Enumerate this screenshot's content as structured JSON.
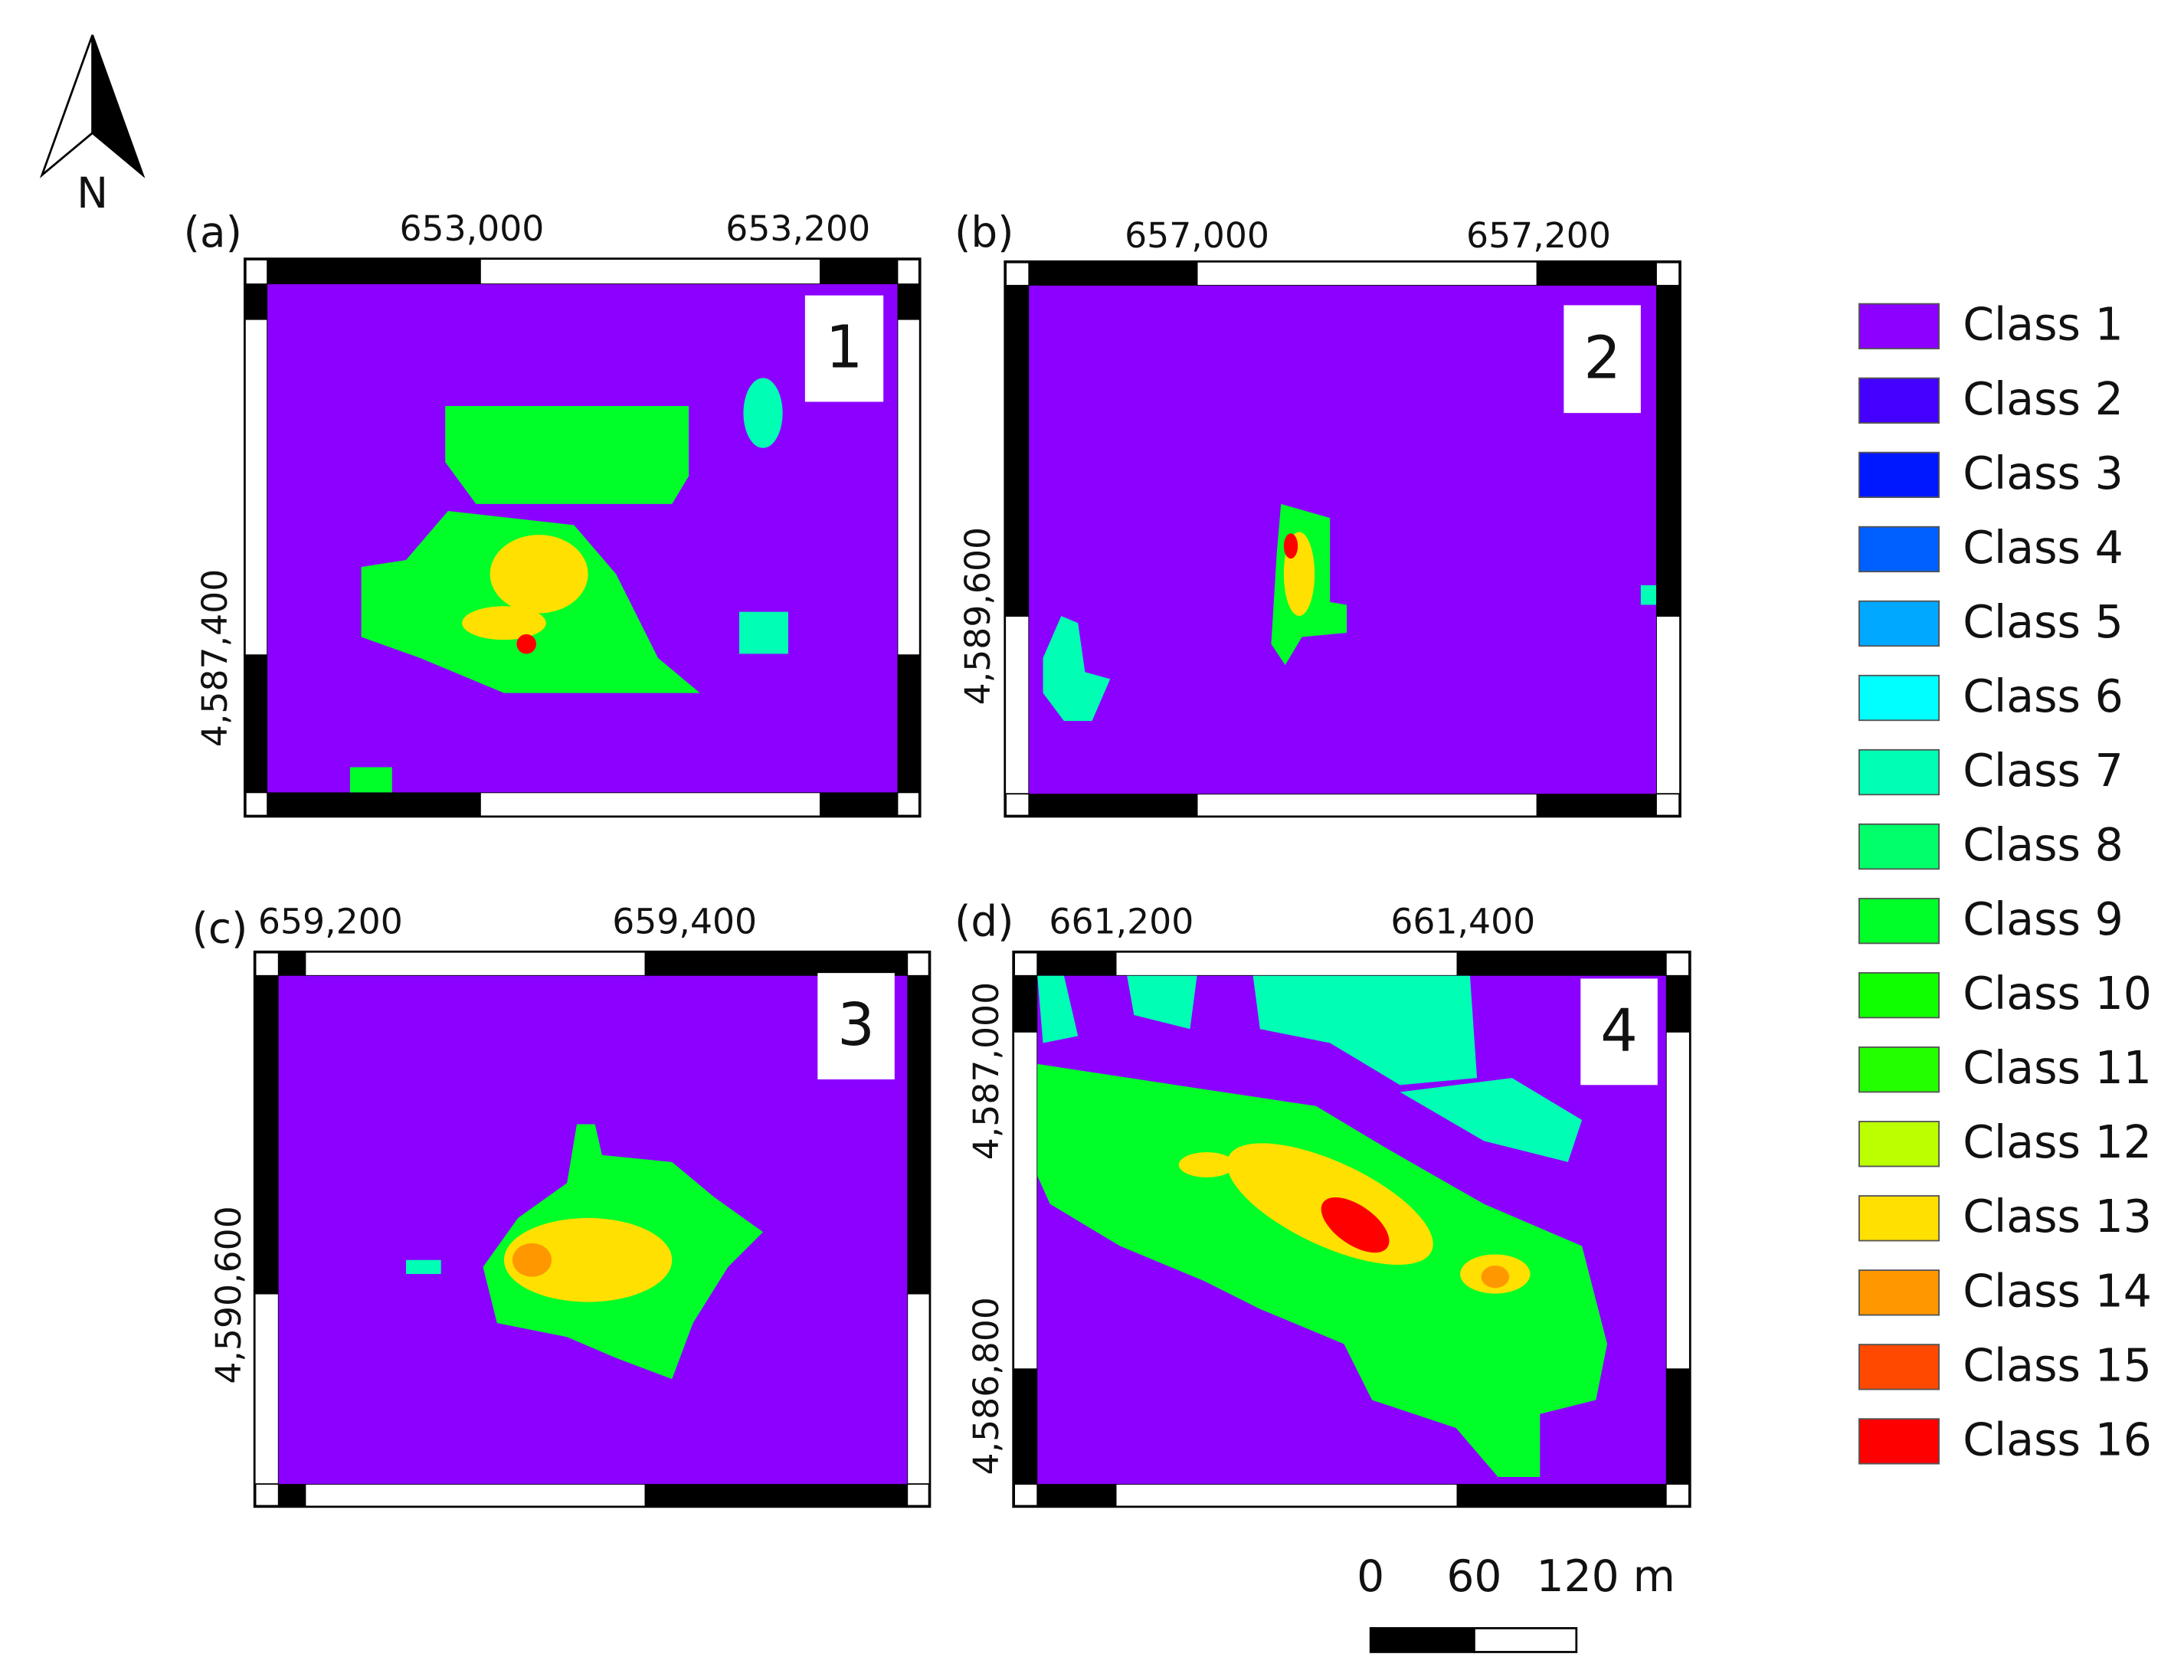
{
  "north_label": "N",
  "panels": [
    {
      "label": "(a)",
      "x_ticks": [
        "653,000",
        "653,200"
      ],
      "y_ticks": [
        "4,587,400"
      ],
      "number": "1"
    },
    {
      "label": "(b)",
      "x_ticks": [
        "657,000",
        "657,200"
      ],
      "y_ticks": [
        "4,589,600"
      ],
      "number": "2"
    },
    {
      "label": "(c)",
      "x_ticks": [
        "659,200",
        "659,400"
      ],
      "y_ticks": [
        "4,590,600"
      ],
      "number": "3"
    },
    {
      "label": "(d)",
      "x_ticks": [
        "661,200",
        "661,400"
      ],
      "y_ticks": [
        "4,587,000",
        "4,586,800"
      ],
      "number": "4"
    }
  ],
  "legend": [
    {
      "label": "Class 1",
      "color": "#8c00ff"
    },
    {
      "label": "Class 2",
      "color": "#4400ff"
    },
    {
      "label": "Class 3",
      "color": "#0018ff"
    },
    {
      "label": "Class 4",
      "color": "#0060ff"
    },
    {
      "label": "Class 5",
      "color": "#00a8ff"
    },
    {
      "label": "Class 6",
      "color": "#00ffff"
    },
    {
      "label": "Class 7",
      "color": "#00ffb4"
    },
    {
      "label": "Class 8",
      "color": "#00ff68"
    },
    {
      "label": "Class 9",
      "color": "#00ff28"
    },
    {
      "label": "Class 10",
      "color": "#10ff00"
    },
    {
      "label": "Class 11",
      "color": "#24ff00"
    },
    {
      "label": "Class 12",
      "color": "#bcff00"
    },
    {
      "label": "Class 13",
      "color": "#ffe000"
    },
    {
      "label": "Class 14",
      "color": "#ff9800"
    },
    {
      "label": "Class 15",
      "color": "#ff4800"
    },
    {
      "label": "Class 16",
      "color": "#ff0000"
    }
  ],
  "scale_bar": {
    "labels": [
      "0",
      "60",
      "120 m"
    ]
  }
}
